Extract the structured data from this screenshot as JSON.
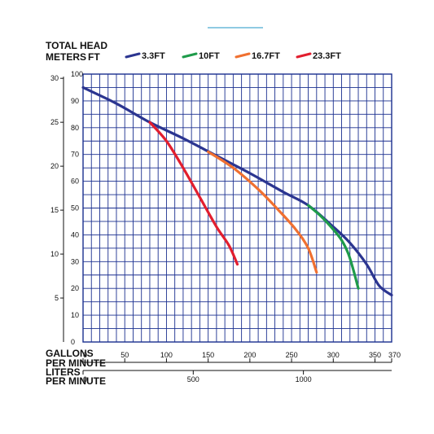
{
  "header": {
    "title_line1": "TOTAL HEAD",
    "title_meters": "METERS",
    "title_ft": "FT"
  },
  "axes": {
    "x_label_gpm_1": "GALLONS",
    "x_label_gpm_2": "PER MINUTE",
    "x_label_lpm_1": "LITERS",
    "x_label_lpm_2": "PER MINUTE"
  },
  "colors": {
    "grid": "#1a2f8f",
    "accent_line": "#6ab8d8"
  },
  "chart_data": {
    "type": "line",
    "xlabel": "GALLONS PER MINUTE",
    "ylabel": "TOTAL HEAD FT",
    "xlim": [
      0,
      370
    ],
    "ylim": [
      0,
      100
    ],
    "x_ticks": [
      0,
      50,
      100,
      150,
      200,
      250,
      300,
      350,
      370
    ],
    "x_tick_labels": [
      "0",
      "50",
      "100",
      "150",
      "200",
      "250",
      "300",
      "350",
      "370"
    ],
    "y_ticks": [
      0,
      10,
      20,
      30,
      40,
      50,
      60,
      70,
      80,
      90,
      100
    ],
    "y_tick_labels": [
      "0",
      "10",
      "20",
      "30",
      "40",
      "50",
      "60",
      "70",
      "80",
      "90",
      "100"
    ],
    "meters_ticks": [
      5,
      10,
      15,
      20,
      25,
      30
    ],
    "meters_tick_labels": [
      "5",
      "10",
      "15",
      "20",
      "25",
      "30"
    ],
    "liters_ticks": [
      0,
      500,
      1000
    ],
    "liters_tick_labels": [
      "0",
      "500",
      "1000"
    ],
    "grid": true,
    "legend_position": "top",
    "series": [
      {
        "name": "3.3FT",
        "color": "#2b3590",
        "x": [
          0,
          40,
          80,
          120,
          160,
          200,
          240,
          270,
          300,
          320,
          340,
          355,
          370
        ],
        "y": [
          95,
          89,
          82,
          76,
          69.5,
          63,
          56,
          51,
          43,
          37,
          29,
          21,
          17.5
        ]
      },
      {
        "name": "10FT",
        "color": "#1e9b4a",
        "x": [
          270,
          285,
          300,
          310,
          318,
          324,
          330
        ],
        "y": [
          51,
          47,
          42,
          38,
          33,
          27,
          20
        ]
      },
      {
        "name": "16.7FT",
        "color": "#f07030",
        "x": [
          150,
          180,
          210,
          235,
          255,
          270,
          280
        ],
        "y": [
          71,
          65,
          57,
          49,
          42,
          35,
          26
        ]
      },
      {
        "name": "23.3FT",
        "color": "#e21e2e",
        "x": [
          80,
          100,
          120,
          140,
          160,
          175,
          185
        ],
        "y": [
          82,
          75,
          65,
          54,
          43,
          36,
          29
        ]
      }
    ]
  }
}
